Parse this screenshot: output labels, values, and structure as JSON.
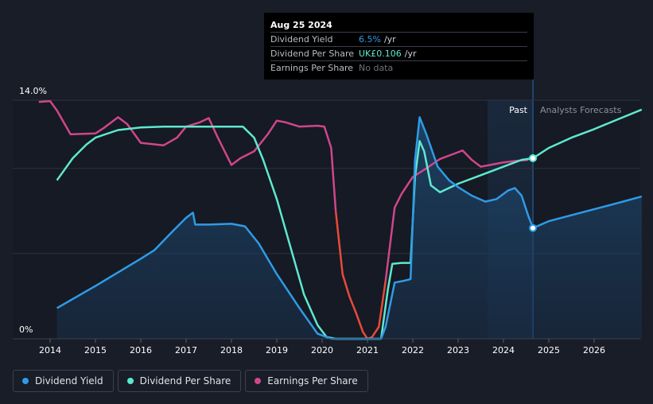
{
  "tooltip": {
    "date": "Aug 25 2024",
    "rows": [
      {
        "label": "Dividend Yield",
        "value": "6.5%",
        "suffix": "/yr",
        "color": "#2f9be6"
      },
      {
        "label": "Dividend Per Share",
        "value": "UK£0.106",
        "suffix": "/yr",
        "color": "#5ee8cf"
      },
      {
        "label": "Earnings Per Share",
        "value": "No data",
        "suffix": "",
        "color": "#6e737c"
      }
    ]
  },
  "period_labels": {
    "past": "Past",
    "forecast": "Analysts Forecasts"
  },
  "legend": [
    {
      "label": "Dividend Yield",
      "color": "#2f9be6"
    },
    {
      "label": "Dividend Per Share",
      "color": "#5ee8cf"
    },
    {
      "label": "Earnings Per Share",
      "color": "#d0468a"
    }
  ],
  "chart_data": {
    "type": "line",
    "title": "",
    "xlabel": "",
    "ylabel": "",
    "x_ticks": [
      "2014",
      "2015",
      "2016",
      "2017",
      "2018",
      "2019",
      "2020",
      "2021",
      "2022",
      "2023",
      "2024",
      "2025",
      "2026"
    ],
    "y_tick_labels": [
      "0%",
      "14.0%"
    ],
    "xlim": [
      2013.0,
      2027.1
    ],
    "ylim": [
      0,
      14.0
    ],
    "past_end_x": 2024.65,
    "series": [
      {
        "name": "Dividend Yield",
        "unit": "%",
        "color": "#2f9be6",
        "area": true,
        "points": [
          [
            2014.15,
            1.8
          ],
          [
            2015.0,
            3.1
          ],
          [
            2016.0,
            4.7
          ],
          [
            2016.3,
            5.2
          ],
          [
            2016.7,
            6.3
          ],
          [
            2017.0,
            7.1
          ],
          [
            2017.15,
            7.4
          ],
          [
            2017.2,
            6.7
          ],
          [
            2017.5,
            6.7
          ],
          [
            2018.0,
            6.75
          ],
          [
            2018.3,
            6.6
          ],
          [
            2018.6,
            5.6
          ],
          [
            2019.0,
            3.8
          ],
          [
            2019.5,
            1.8
          ],
          [
            2019.9,
            0.3
          ],
          [
            2020.2,
            0
          ],
          [
            2020.5,
            0
          ],
          [
            2020.8,
            0
          ],
          [
            2021.0,
            0
          ],
          [
            2021.3,
            0
          ],
          [
            2021.4,
            0.7
          ],
          [
            2021.6,
            3.3
          ],
          [
            2021.8,
            3.4
          ],
          [
            2021.95,
            3.5
          ],
          [
            2022.05,
            10.5
          ],
          [
            2022.15,
            13.0
          ],
          [
            2022.3,
            12.0
          ],
          [
            2022.55,
            10.1
          ],
          [
            2022.8,
            9.3
          ],
          [
            2023.0,
            8.9
          ],
          [
            2023.3,
            8.4
          ],
          [
            2023.6,
            8.05
          ],
          [
            2023.85,
            8.2
          ],
          [
            2024.1,
            8.7
          ],
          [
            2024.25,
            8.85
          ],
          [
            2024.4,
            8.4
          ],
          [
            2024.55,
            7.2
          ],
          [
            2024.65,
            6.5
          ],
          [
            2025.0,
            6.9
          ],
          [
            2025.5,
            7.25
          ],
          [
            2026.0,
            7.6
          ],
          [
            2026.5,
            7.95
          ],
          [
            2027.05,
            8.35
          ]
        ]
      },
      {
        "name": "Dividend Per Share",
        "unit": "UK£",
        "color": "#5ee8cf",
        "area": false,
        "points": [
          [
            2014.15,
            9.3
          ],
          [
            2014.5,
            10.6
          ],
          [
            2014.8,
            11.4
          ],
          [
            2015.0,
            11.8
          ],
          [
            2015.5,
            12.25
          ],
          [
            2016.0,
            12.4
          ],
          [
            2016.5,
            12.45
          ],
          [
            2017.0,
            12.45
          ],
          [
            2017.5,
            12.45
          ],
          [
            2018.0,
            12.45
          ],
          [
            2018.25,
            12.45
          ],
          [
            2018.5,
            11.8
          ],
          [
            2018.7,
            10.5
          ],
          [
            2019.0,
            8.2
          ],
          [
            2019.3,
            5.4
          ],
          [
            2019.6,
            2.6
          ],
          [
            2019.9,
            0.8
          ],
          [
            2020.1,
            0.1
          ],
          [
            2020.3,
            0
          ],
          [
            2020.7,
            0
          ],
          [
            2021.0,
            0
          ],
          [
            2021.3,
            0
          ],
          [
            2021.45,
            2.9
          ],
          [
            2021.55,
            4.4
          ],
          [
            2021.75,
            4.45
          ],
          [
            2021.95,
            4.45
          ],
          [
            2022.05,
            9.5
          ],
          [
            2022.15,
            11.6
          ],
          [
            2022.25,
            11.0
          ],
          [
            2022.4,
            9.0
          ],
          [
            2022.6,
            8.6
          ],
          [
            2023.0,
            9.1
          ],
          [
            2023.5,
            9.6
          ],
          [
            2024.0,
            10.1
          ],
          [
            2024.4,
            10.5
          ],
          [
            2024.65,
            10.6
          ],
          [
            2025.0,
            11.2
          ],
          [
            2025.5,
            11.8
          ],
          [
            2026.0,
            12.3
          ],
          [
            2026.5,
            12.85
          ],
          [
            2027.05,
            13.45
          ]
        ]
      },
      {
        "name": "Earnings Per Share",
        "unit": "",
        "color": "#d0468a",
        "negative_color": "#e84a3a",
        "area": false,
        "points": [
          [
            2013.75,
            13.9
          ],
          [
            2014.0,
            13.95
          ],
          [
            2014.15,
            13.4
          ],
          [
            2014.45,
            12.0
          ],
          [
            2015.0,
            12.05
          ],
          [
            2015.2,
            12.4
          ],
          [
            2015.5,
            13.0
          ],
          [
            2015.7,
            12.6
          ],
          [
            2016.0,
            11.5
          ],
          [
            2016.5,
            11.35
          ],
          [
            2016.8,
            11.8
          ],
          [
            2017.0,
            12.45
          ],
          [
            2017.3,
            12.7
          ],
          [
            2017.5,
            12.95
          ],
          [
            2017.7,
            11.8
          ],
          [
            2018.0,
            10.2
          ],
          [
            2018.2,
            10.6
          ],
          [
            2018.5,
            11.0
          ],
          [
            2018.8,
            12.0
          ],
          [
            2019.0,
            12.8
          ],
          [
            2019.2,
            12.7
          ],
          [
            2019.5,
            12.45
          ],
          [
            2019.9,
            12.5
          ],
          [
            2020.05,
            12.45
          ],
          [
            2020.2,
            11.2
          ],
          [
            2020.3,
            7.5
          ],
          [
            2020.45,
            3.8
          ],
          [
            2020.6,
            2.5
          ],
          [
            2020.75,
            1.5
          ],
          [
            2020.9,
            0.4
          ],
          [
            2021.0,
            0
          ],
          [
            2021.1,
            0.1
          ],
          [
            2021.25,
            0.7
          ],
          [
            2021.4,
            3.4
          ],
          [
            2021.6,
            7.7
          ],
          [
            2021.75,
            8.5
          ],
          [
            2022.0,
            9.5
          ],
          [
            2022.3,
            10.0
          ],
          [
            2022.6,
            10.55
          ],
          [
            2022.9,
            10.85
          ],
          [
            2023.1,
            11.05
          ],
          [
            2023.3,
            10.5
          ],
          [
            2023.5,
            10.1
          ],
          [
            2023.8,
            10.25
          ],
          [
            2024.0,
            10.35
          ],
          [
            2024.3,
            10.45
          ],
          [
            2024.55,
            10.5
          ]
        ]
      }
    ],
    "markers": [
      {
        "series": "Dividend Per Share",
        "x": 2024.65,
        "y": 10.6
      },
      {
        "series": "Dividend Yield",
        "x": 2024.65,
        "y": 6.5
      }
    ],
    "legend_position": "bottom-left",
    "grid": true
  }
}
